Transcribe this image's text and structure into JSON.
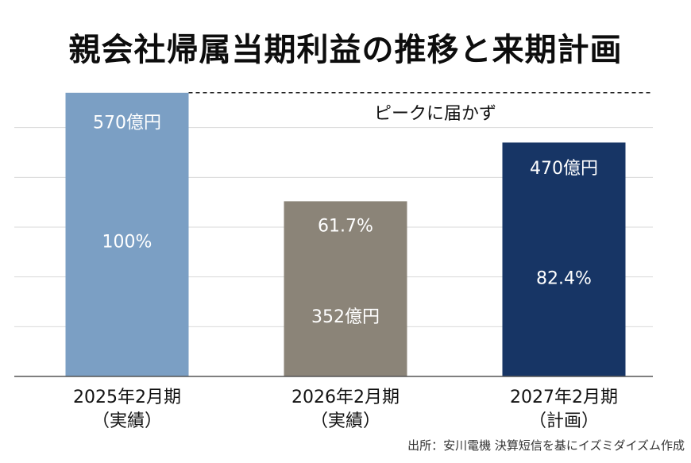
{
  "title": "親会社帰属当期利益の推移と来期計画",
  "source": "出所：安川電機 決算短信を基にイズミダイズム作成",
  "chart_data": {
    "type": "bar",
    "title": "親会社帰属当期利益の推移と来期計画",
    "categories": [
      [
        "2025年2月期",
        "（実績）"
      ],
      [
        "2026年2月期",
        "（実績）"
      ],
      [
        "2027年2月期",
        "（計画）"
      ]
    ],
    "values": [
      570,
      352,
      470
    ],
    "value_labels": [
      "570億円",
      "352億円",
      "470億円"
    ],
    "ratio_labels": [
      "100%",
      "61.7%",
      "82.4%"
    ],
    "colors": [
      "#7b9fc4",
      "#8b8478",
      "#173565"
    ],
    "ylim": [
      0,
      600
    ],
    "grid": true,
    "annotation": {
      "text": "ピークに届かず",
      "at_value": 570
    }
  }
}
